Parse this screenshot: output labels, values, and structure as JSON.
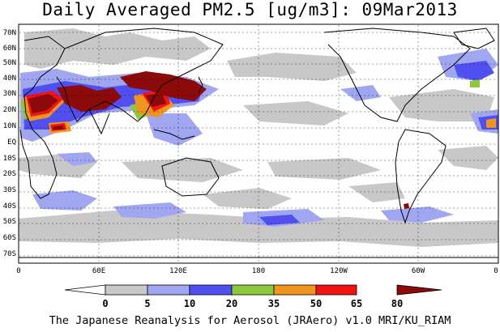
{
  "title": "Daily Averaged PM2.5 [ug/m3]: 09Mar2013",
  "footer": "The Japanese Reanalysis for Aerosol (JRAero) v1.0 MRI/KU_RIAM",
  "latitude_labels": [
    "70N",
    "60N",
    "50N",
    "40N",
    "30N",
    "20N",
    "10N",
    "EQ",
    "10S",
    "20S",
    "30S",
    "40S",
    "50S",
    "60S",
    "70S"
  ],
  "longitude_labels": [
    "0",
    "60E",
    "120E",
    "180",
    "120W",
    "60W",
    "0"
  ],
  "colorbar": {
    "thresholds": [
      "0",
      "5",
      "10",
      "20",
      "35",
      "50",
      "65",
      "80"
    ],
    "colors": [
      "#ffffff",
      "#c8c8c8",
      "#a0a6f0",
      "#5050f0",
      "#8cc83c",
      "#f0961e",
      "#f01414",
      "#8c0a0a"
    ]
  },
  "colors": {
    "land_outline": "#000000",
    "grid_dots": "#000000"
  }
}
